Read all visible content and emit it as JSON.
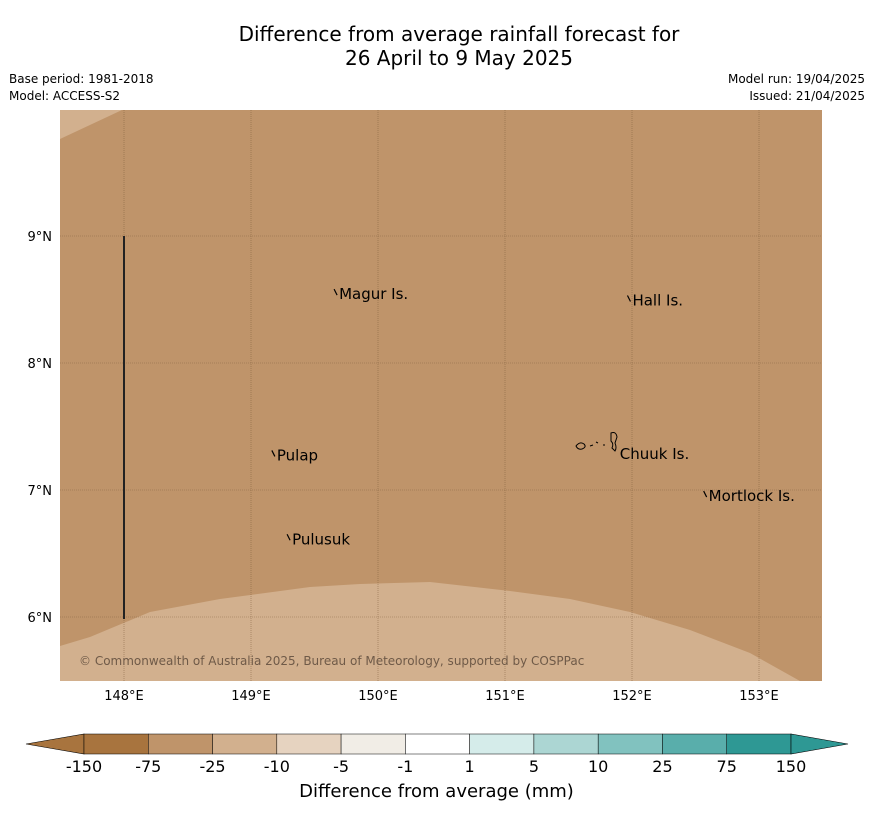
{
  "header": {
    "title_line1": "Difference from average rainfall forecast for",
    "title_line2": "26 April to 9 May 2025",
    "base_period": "Base period: 1981-2018",
    "model": "Model: ACCESS-S2",
    "model_run": "Model run: 19/04/2025",
    "issued": "Issued: 21/04/2025"
  },
  "map": {
    "lon_ticks": [
      "148°E",
      "149°E",
      "150°E",
      "151°E",
      "152°E",
      "153°E"
    ],
    "lat_ticks": [
      "9°N",
      "8°N",
      "7°N",
      "6°N"
    ],
    "copyright": "© Commonwealth of Australia 2025, Bureau of Meteorology, supported by COSPPac",
    "places": [
      {
        "name": "Magur Is.",
        "lon": 149.67,
        "lat": 8.55
      },
      {
        "name": "Hall Is.",
        "lon": 151.98,
        "lat": 8.5
      },
      {
        "name": "Pulap",
        "lon": 149.18,
        "lat": 7.28
      },
      {
        "name": "Chuuk Is.",
        "lon": 151.88,
        "lat": 7.29
      },
      {
        "name": "Mortlock Is.",
        "lon": 152.58,
        "lat": 6.96
      },
      {
        "name": "Pulusuk",
        "lon": 149.3,
        "lat": 6.62
      }
    ]
  },
  "colorbar": {
    "ticks": [
      "-150",
      "-75",
      "-25",
      "-10",
      "-5",
      "-1",
      "1",
      "5",
      "10",
      "25",
      "75",
      "150"
    ],
    "colors": [
      "#a8743e",
      "#bf946a",
      "#d2b08e",
      "#e6d3c0",
      "#f1ede6",
      "#ffffff",
      "#d5ecea",
      "#acd6d3",
      "#81c2bf",
      "#59aeab",
      "#2e9894"
    ],
    "under_color": "#a8743e",
    "over_color": "#2e9894",
    "label": "Difference from average (mm)"
  },
  "colors": {
    "dry_main": "#bf946a",
    "dry_light": "#d2b08e"
  }
}
